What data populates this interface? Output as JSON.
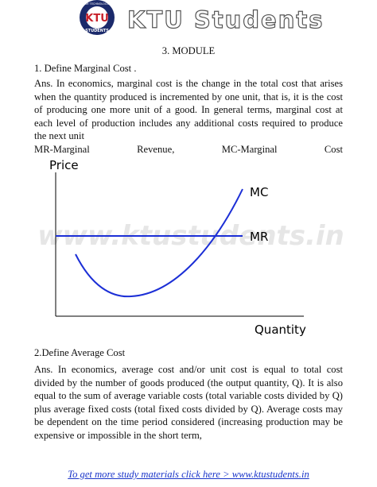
{
  "header": {
    "logo_ring": "APJ ABDUL KALAM TECHNOLOGICAL UNIVERSITY",
    "logo_text": "KTU",
    "logo_subtext": "STUDENTS",
    "title": "KTU Students"
  },
  "module_heading": "3. MODULE",
  "questions": [
    {
      "heading": "1. Define Marginal Cost .",
      "answer": "Ans. In economics, marginal cost is the change in the total cost that arises when the quantity produced is incremented by one unit, that is, it is the cost of producing one more unit of a good. In general terms, marginal cost at each level of production includes any additional costs required to produce the next unit"
    },
    {
      "heading": "2.Define Average Cost",
      "answer": "Ans. In economics, average cost and/or unit cost is equal to total cost divided by the number of goods produced (the output quantity, Q). It is also equal to the sum of average variable costs (total variable costs divided by Q) plus average fixed costs (total fixed costs divided by Q). Average costs may be dependent on the time period considered (increasing production may be expensive or impossible in the short term,"
    }
  ],
  "legend_note": "MR-Marginal Revenue, MC-Marginal Cost",
  "diagram": {
    "y_label": "Price",
    "x_label": "Quantity",
    "mc_label": "MC",
    "mr_label": "MR"
  },
  "watermark": "www.ktustudents.in",
  "footer": {
    "link": "To get more study materials click here > www.ktustudents.in"
  }
}
